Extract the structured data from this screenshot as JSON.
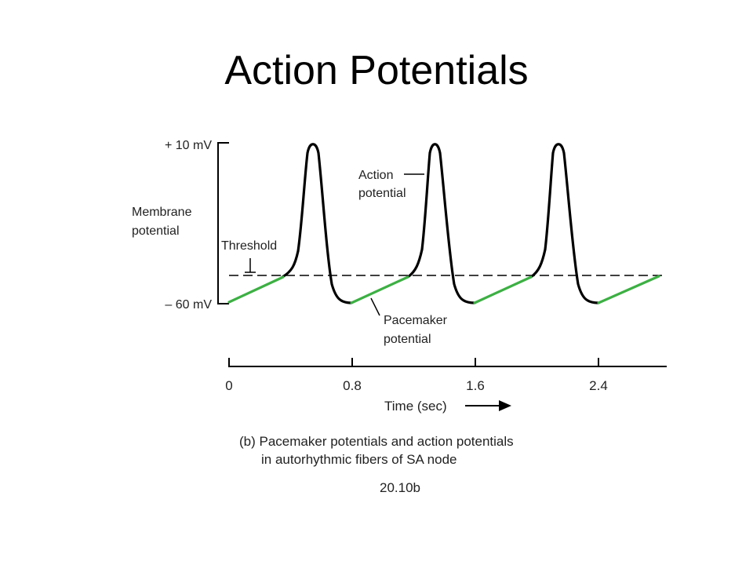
{
  "title": "Action Potentials",
  "figure": {
    "y_top_label": "+ 10 mV",
    "y_bottom_label": "– 60 mV",
    "y_axis_label": [
      "Membrane",
      "potential"
    ],
    "threshold_label": "Threshold",
    "action_label": [
      "Action",
      "potential"
    ],
    "pacemaker_label": [
      "Pacemaker",
      "potential"
    ],
    "x_ticks": [
      "0",
      "0.8",
      "1.6",
      "2.4"
    ],
    "x_axis_label": "Time (sec)",
    "caption": [
      "(b) Pacemaker potentials and action potentials",
      "in autorhythmic fibers of SA node"
    ],
    "figure_number": "20.10b",
    "colors": {
      "trace": "#000000",
      "pacemaker": "#3cb043",
      "text": "#222222"
    }
  }
}
